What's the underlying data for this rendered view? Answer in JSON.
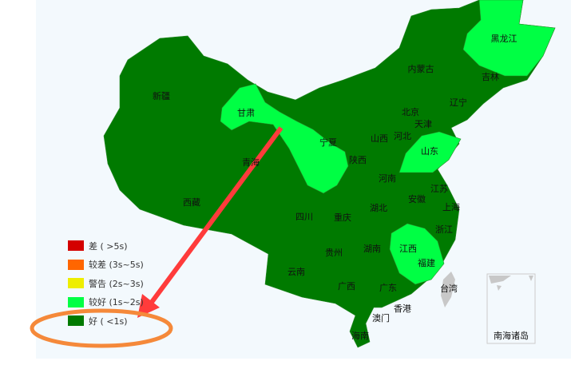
{
  "provinces": {
    "heilongjiang": "黑龙江",
    "neimenggu": "内蒙古",
    "jilin": "吉林",
    "liaoning": "辽宁",
    "xinjiang": "新疆",
    "gansu": "甘肃",
    "beijing": "北京",
    "tianjin": "天津",
    "hebei": "河北",
    "shanxi": "山西",
    "shandong": "山东",
    "ningxia": "宁夏",
    "qinghai": "青海",
    "shaanxi": "陕西",
    "henan": "河南",
    "jiangsu": "江苏",
    "anhui": "安徽",
    "shanghai": "上海",
    "xizang": "西藏",
    "sichuan": "四川",
    "chongqing": "重庆",
    "hubei": "湖北",
    "zhejiang": "浙江",
    "guizhou": "贵州",
    "hunan": "湖南",
    "jiangxi": "江西",
    "fujian": "福建",
    "yunnan": "云南",
    "guangxi": "广西",
    "guangdong": "广东",
    "taiwan": "台湾",
    "xianggang": "香港",
    "aomen": "澳门",
    "hainan": "海南",
    "nanhai": "南海诸岛"
  },
  "legend": [
    {
      "label": "差 ( >5s)",
      "color": "#d40000"
    },
    {
      "label": "较差 (3s~5s)",
      "color": "#ff6600"
    },
    {
      "label": "警告 (2s~3s)",
      "color": "#eeee00"
    },
    {
      "label": "较好 (1s~2s)",
      "color": "#00ff44"
    },
    {
      "label": "好 ( <1s)",
      "color": "#007a00"
    }
  ],
  "colors": {
    "good": "#007a00",
    "fair": "#00ff44",
    "annotation_arrow": "#ff3b3b",
    "annotation_ellipse": "#f5893a"
  }
}
